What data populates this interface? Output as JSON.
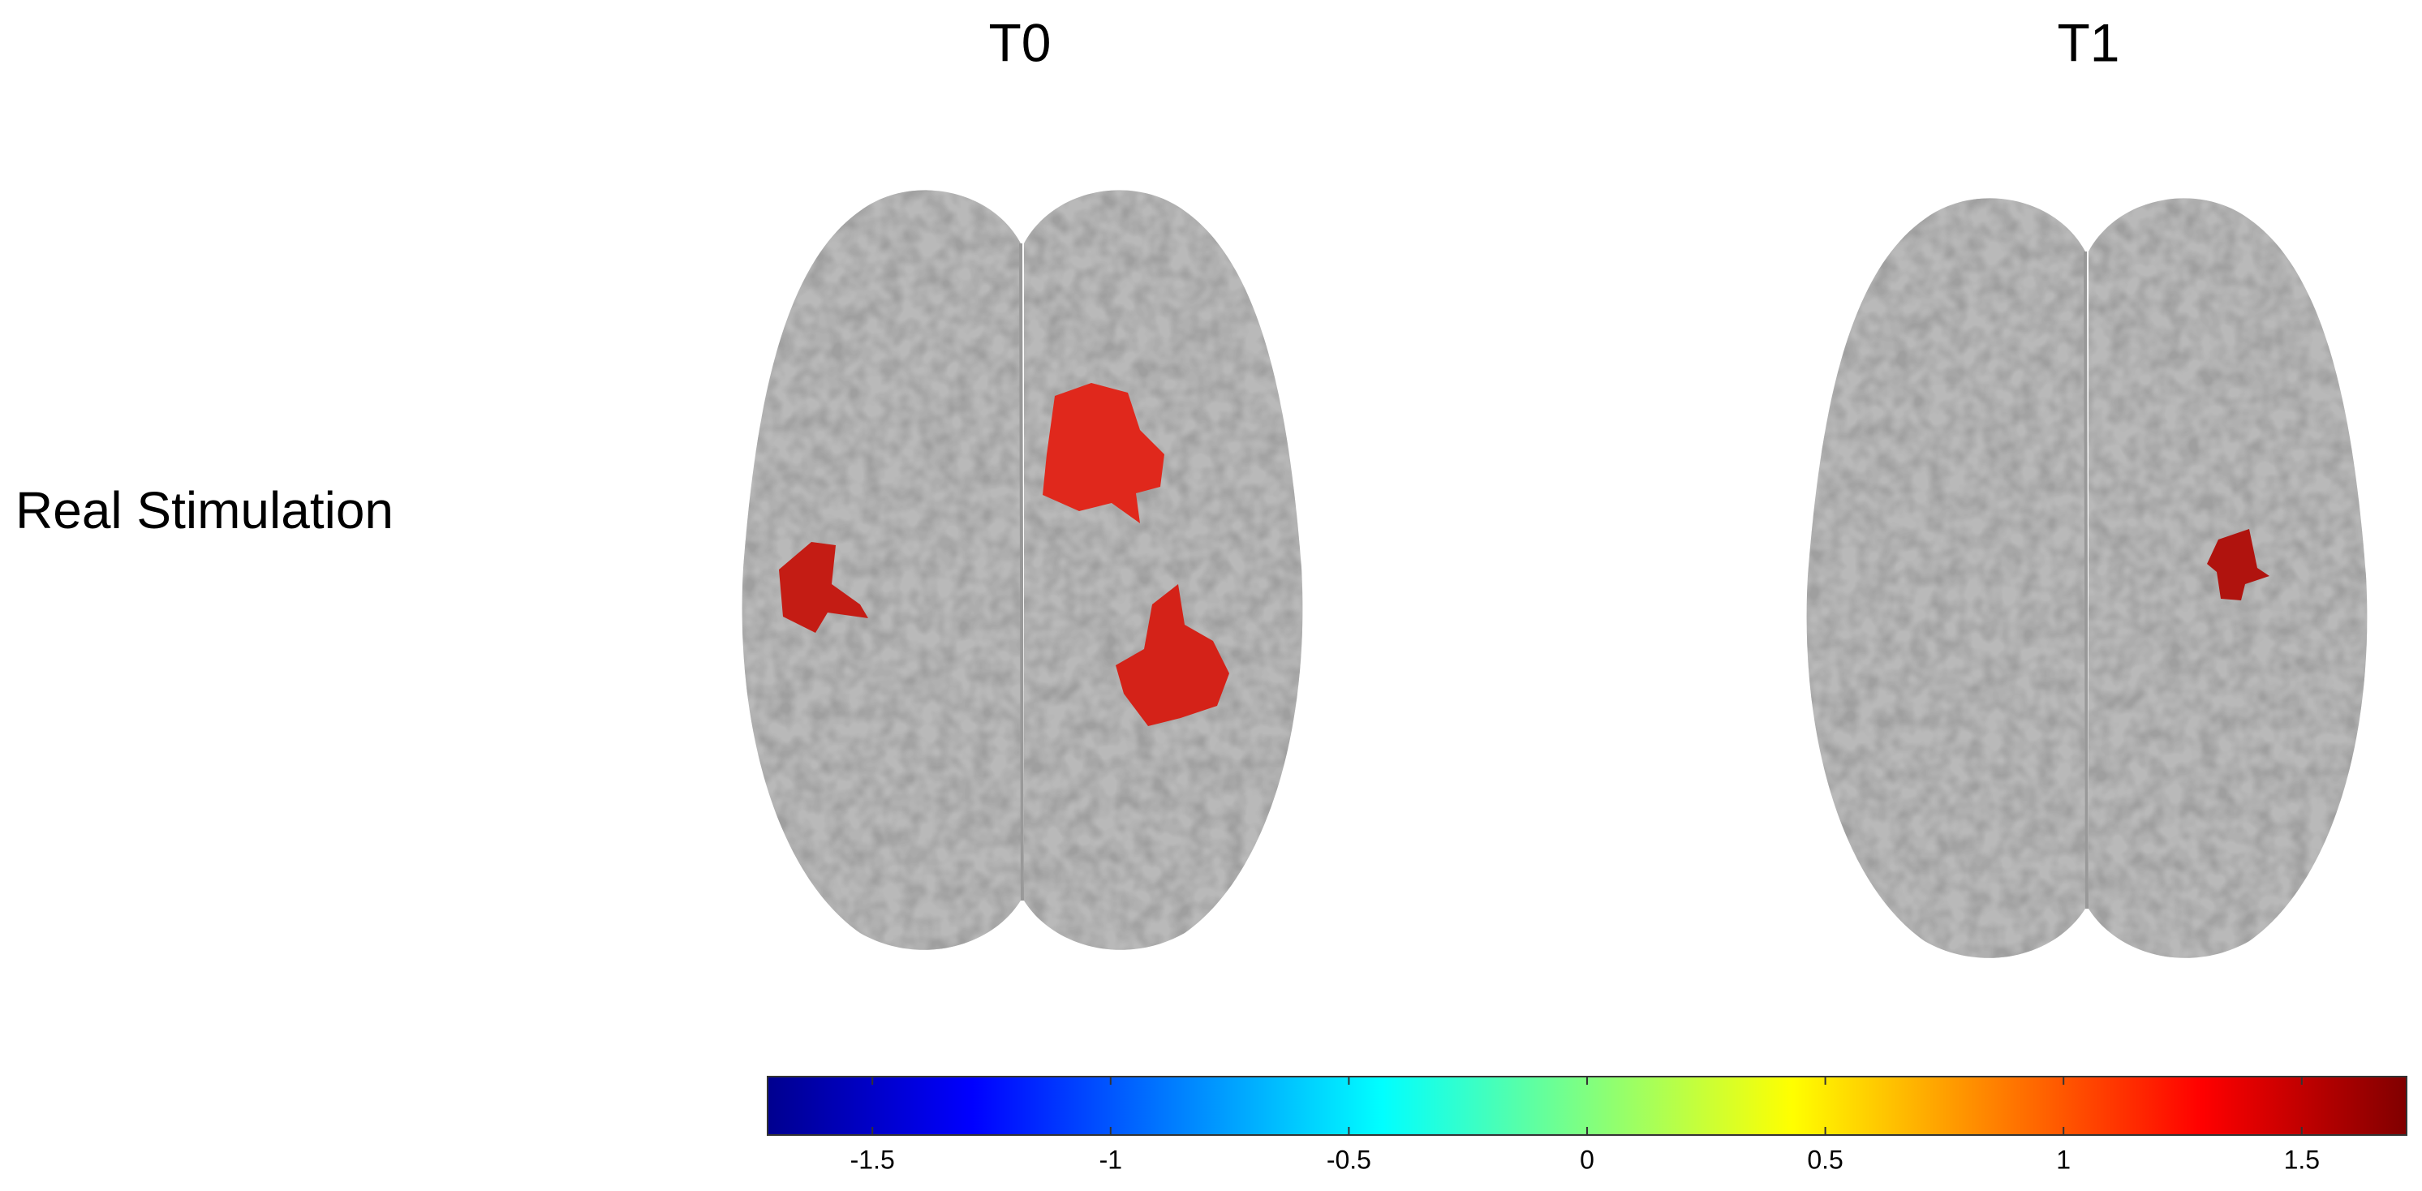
{
  "columns": [
    "T0",
    "T1"
  ],
  "row_label": "Real Stimulation",
  "colorbar": {
    "lim": [
      -1.72,
      1.72
    ],
    "ticks": [
      -1.5,
      -1,
      -0.5,
      0,
      0.5,
      1,
      1.5
    ]
  }
}
